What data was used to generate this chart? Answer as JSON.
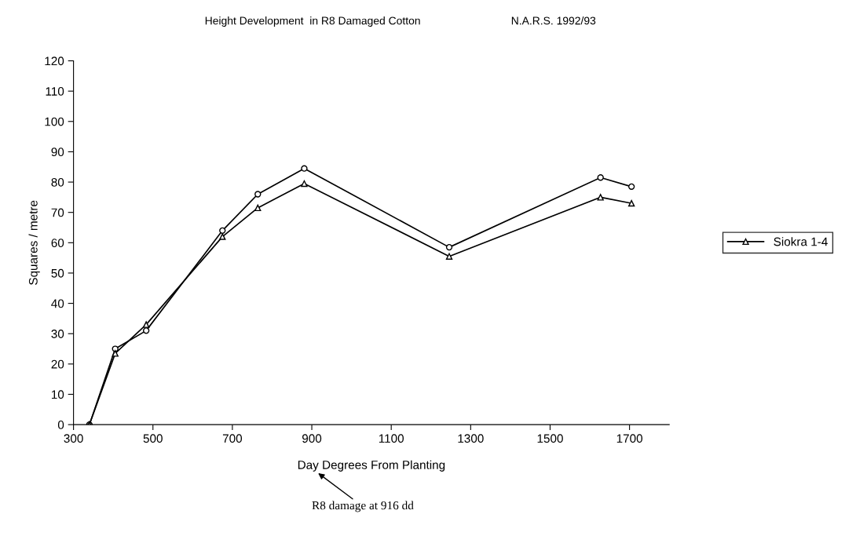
{
  "chart_data": {
    "type": "line",
    "title": "Height Development  in R8 Damaged Cotton",
    "subtitle": "N.A.R.S. 1992/93",
    "xlabel": "Day Degrees From Planting",
    "ylabel": "Squares / metre",
    "x": [
      340,
      405,
      483,
      675,
      764,
      881,
      1246,
      1627,
      1705
    ],
    "series": [
      {
        "color": "#000000",
        "marker": "circle",
        "values": [
          0,
          25,
          31,
          64,
          76,
          84.5,
          58.5,
          81.5,
          78.5
        ]
      },
      {
        "name": "Siokra 1-4",
        "color": "#000000",
        "marker": "triangle",
        "values": [
          0,
          23.5,
          33,
          62,
          71.5,
          79.5,
          55.5,
          75,
          73
        ]
      }
    ],
    "xlim": [
      300,
      1800
    ],
    "xticks": [
      300,
      500,
      700,
      900,
      1100,
      1300,
      1500,
      1700
    ],
    "ylim": [
      0,
      120
    ],
    "yticks": [
      0,
      10,
      20,
      30,
      40,
      50,
      60,
      70,
      80,
      90,
      100,
      110,
      120
    ],
    "annotations": [
      "R8 damage at 916 dd"
    ],
    "grid": false,
    "legend": "right",
    "line_style": "solid"
  }
}
